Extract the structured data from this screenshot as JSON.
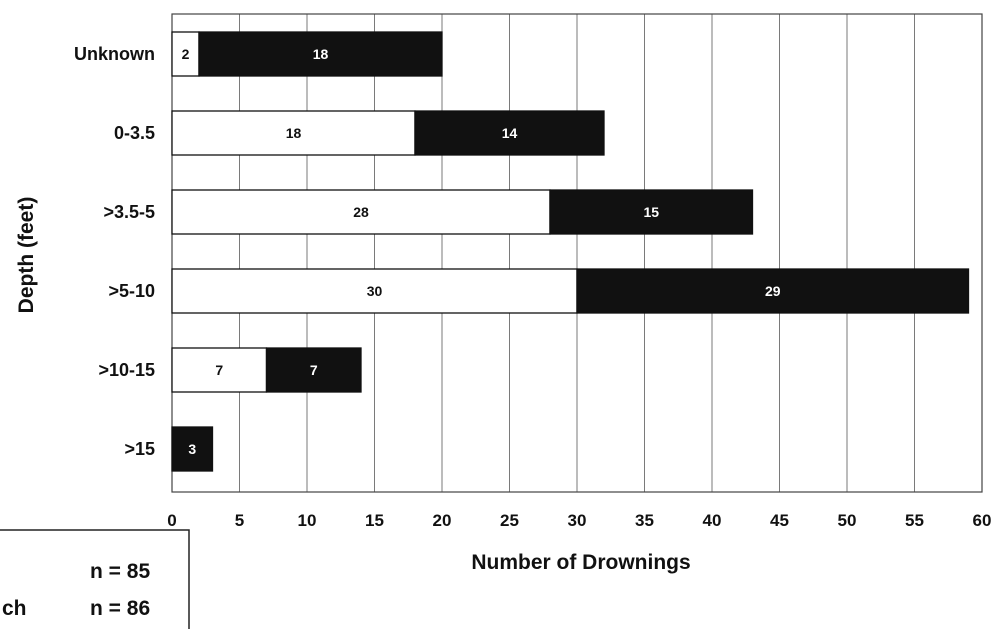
{
  "chart_data": {
    "type": "bar",
    "orientation": "horizontal",
    "stacked": true,
    "categories": [
      "Unknown",
      "0-3.5",
      ">3.5-5",
      ">5-10",
      ">10-15",
      ">15"
    ],
    "series": [
      {
        "values": [
          2,
          18,
          28,
          30,
          7,
          null
        ],
        "color": "#ffffff"
      },
      {
        "values": [
          18,
          14,
          15,
          29,
          7,
          3
        ],
        "color": "#111111"
      }
    ],
    "xlabel": "Number of Drownings",
    "ylabel": "Depth (feet)",
    "xlim": [
      0,
      60
    ],
    "xticks": [
      0,
      5,
      10,
      15,
      20,
      25,
      30,
      35,
      40,
      45,
      50,
      55,
      60
    ],
    "grid": true,
    "legend": {
      "placement": "bottom-left",
      "entries": [
        {
          "label_fragment": "",
          "n_text": "n = 85"
        },
        {
          "label_fragment": "ch",
          "n_text": "n = 86"
        }
      ]
    }
  }
}
